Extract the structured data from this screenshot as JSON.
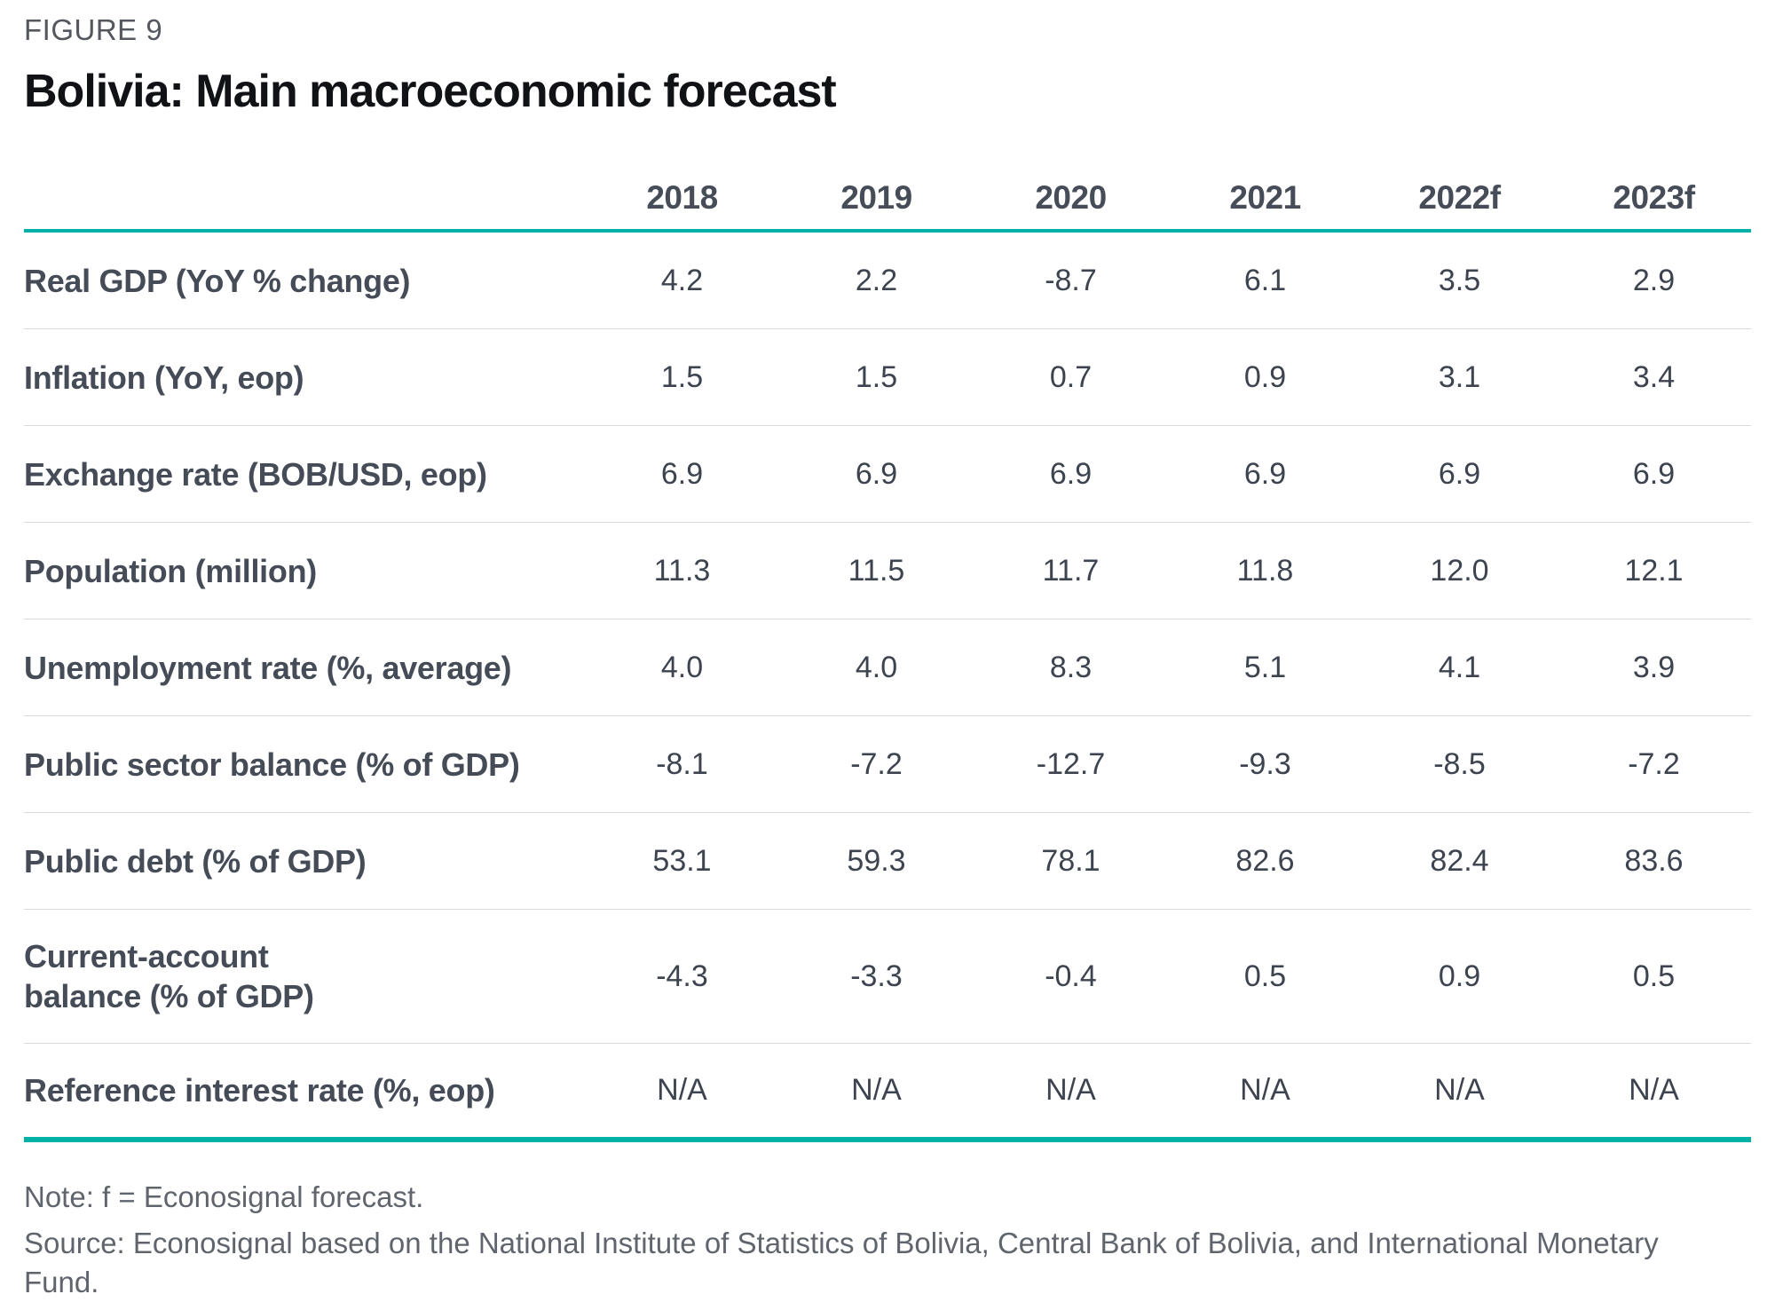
{
  "figure_label": "FIGURE 9",
  "title": "Bolivia: Main macroeconomic forecast",
  "note": "Note: f = Econosignal forecast.",
  "source": "Source: Econosignal based on the National Institute of Statistics of Bolivia, Central Bank of Bolivia, and International Monetary Fund.",
  "na_text": "N/A",
  "colors": {
    "accent_teal": "#00b1a7",
    "row_divider": "#d9dadb",
    "title_text": "#101215",
    "label_text": "#454c57",
    "figure_label_text": "#54575e",
    "footnote_text": "#60656d"
  },
  "chart_data": {
    "type": "table",
    "title": "Bolivia: Main macroeconomic forecast",
    "categories": [
      "2018",
      "2019",
      "2020",
      "2021",
      "2022f",
      "2023f"
    ],
    "series": [
      {
        "name": "Real GDP (YoY % change)",
        "values": [
          4.2,
          2.2,
          -8.7,
          6.1,
          3.5,
          2.9
        ]
      },
      {
        "name": "Inflation (YoY, eop)",
        "values": [
          1.5,
          1.5,
          0.7,
          0.9,
          3.1,
          3.4
        ]
      },
      {
        "name": "Exchange rate (BOB/USD, eop)",
        "values": [
          6.9,
          6.9,
          6.9,
          6.9,
          6.9,
          6.9
        ]
      },
      {
        "name": "Population (million)",
        "values": [
          11.3,
          11.5,
          11.7,
          11.8,
          12.0,
          12.1
        ]
      },
      {
        "name": "Unemployment rate (%, average)",
        "values": [
          4.0,
          4.0,
          8.3,
          5.1,
          4.1,
          3.9
        ]
      },
      {
        "name": "Public sector balance (% of GDP)",
        "values": [
          -8.1,
          -7.2,
          -12.7,
          -9.3,
          -8.5,
          -7.2
        ]
      },
      {
        "name": "Public debt (% of GDP)",
        "values": [
          53.1,
          59.3,
          78.1,
          82.6,
          82.4,
          83.6
        ]
      },
      {
        "name": "Current-account balance (% of GDP)",
        "label": "Current-account\nbalance (% of GDP)",
        "values": [
          -4.3,
          -3.3,
          -0.4,
          0.5,
          0.9,
          0.5
        ]
      },
      {
        "name": "Reference interest rate (%, eop)",
        "values": [
          null,
          null,
          null,
          null,
          null,
          null
        ]
      }
    ]
  }
}
